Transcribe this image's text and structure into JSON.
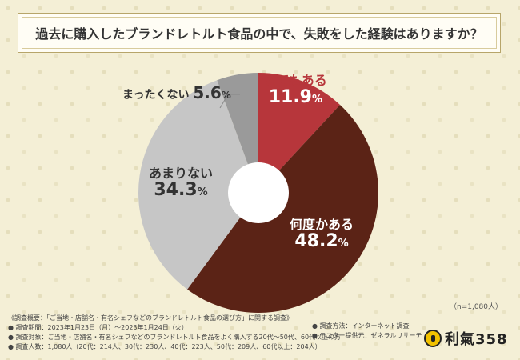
{
  "title": "過去に購入したブランドレトルト食品の中で、失敗をした経験はありますか？",
  "note": "（n=1,080人）",
  "chart_data": {
    "type": "pie",
    "subtype": "donut",
    "categories": [
      "とてもある",
      "何度かある",
      "あまりない",
      "まったくない"
    ],
    "values": [
      11.9,
      48.2,
      34.3,
      5.6
    ],
    "unit": "%",
    "colors": [
      "#b7363b",
      "#5b2316",
      "#c6c6c6",
      "#9a9a9a"
    ]
  },
  "labels": [
    {
      "label": "とてもある",
      "pct_main": "11.9",
      "pct_unit": "%"
    },
    {
      "label": "何度かある",
      "pct_main": "48.2",
      "pct_unit": "%"
    },
    {
      "label": "あまりない",
      "pct_main": "34.3",
      "pct_unit": "%"
    },
    {
      "label": "まったくない",
      "pct_main": "5.6",
      "pct_unit": "%"
    }
  ],
  "footer": {
    "lines_left": [
      "《調査概要：「ご当地・店舗名・有名シェフなどのブランドレトルト食品の選び方」に関する調査》",
      "● 調査期間：2023年1月23日（月）～2023年1月24日（火）",
      "● 調査対象：ご当地・店舗名・有名シェフなどのブランドレトルト食品をよく購入する20代～50代、60代以上の方",
      "● 調査人数：1,080人（20代：214人、30代：230人、40代：223人、50代：209人、60代以上：204人）"
    ],
    "lines_right": [
      "● 調査方法：インターネット調査",
      "● モニター提供元：ゼネラルリサーチ"
    ]
  },
  "logo": {
    "text": "利氣358",
    "icon": "logo-mark-icon"
  }
}
